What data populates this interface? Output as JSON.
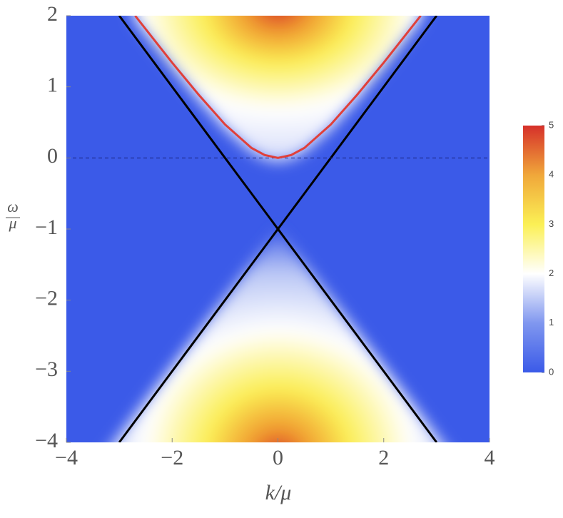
{
  "chart_data": {
    "type": "density",
    "xlabel": "k/μ",
    "ylabel": {
      "numerator": "ω",
      "denominator": "μ"
    },
    "xlim": [
      -4,
      4
    ],
    "xticks": [
      {
        "value": -4,
        "label": "−4"
      },
      {
        "value": -2,
        "label": "−2"
      },
      0,
      2,
      4
    ],
    "ylim": [
      -4,
      2
    ],
    "yticks": [
      {
        "value": -4,
        "label": "−4"
      },
      {
        "value": -3,
        "label": "−3"
      },
      {
        "value": -2,
        "label": "−2"
      },
      {
        "value": -1,
        "label": "−1"
      },
      0,
      1,
      2
    ],
    "background": "#3b5ae8",
    "colorbar": {
      "ylim": [
        0,
        5
      ],
      "yticks": [
        0,
        1,
        2,
        3,
        4,
        5
      ],
      "colors": [
        "#3b5ae8",
        "#8097ef",
        "#ffffff",
        "#fbf055",
        "#f0a73a",
        "#d6302a"
      ]
    },
    "lines": [
      {
        "color": "#000000",
        "x": [
          -3,
          3
        ],
        "y": [
          2,
          -4
        ]
      },
      {
        "color": "#000000",
        "x": [
          -3,
          3
        ],
        "y": [
          -4,
          2
        ]
      },
      {
        "color": "#1a237e",
        "dashed": true,
        "x": [
          -4,
          4
        ],
        "y": [
          0,
          0
        ]
      },
      {
        "color": "#e0403a",
        "x": [
          -2.7,
          -2,
          -1.5,
          -1,
          -0.5,
          -0.25,
          0,
          0.25,
          0.5,
          1,
          1.5,
          2,
          2.7
        ],
        "y": [
          2,
          1.34,
          0.89,
          0.47,
          0.14,
          0.04,
          0,
          0.04,
          0.14,
          0.47,
          0.89,
          1.34,
          2
        ]
      }
    ]
  }
}
